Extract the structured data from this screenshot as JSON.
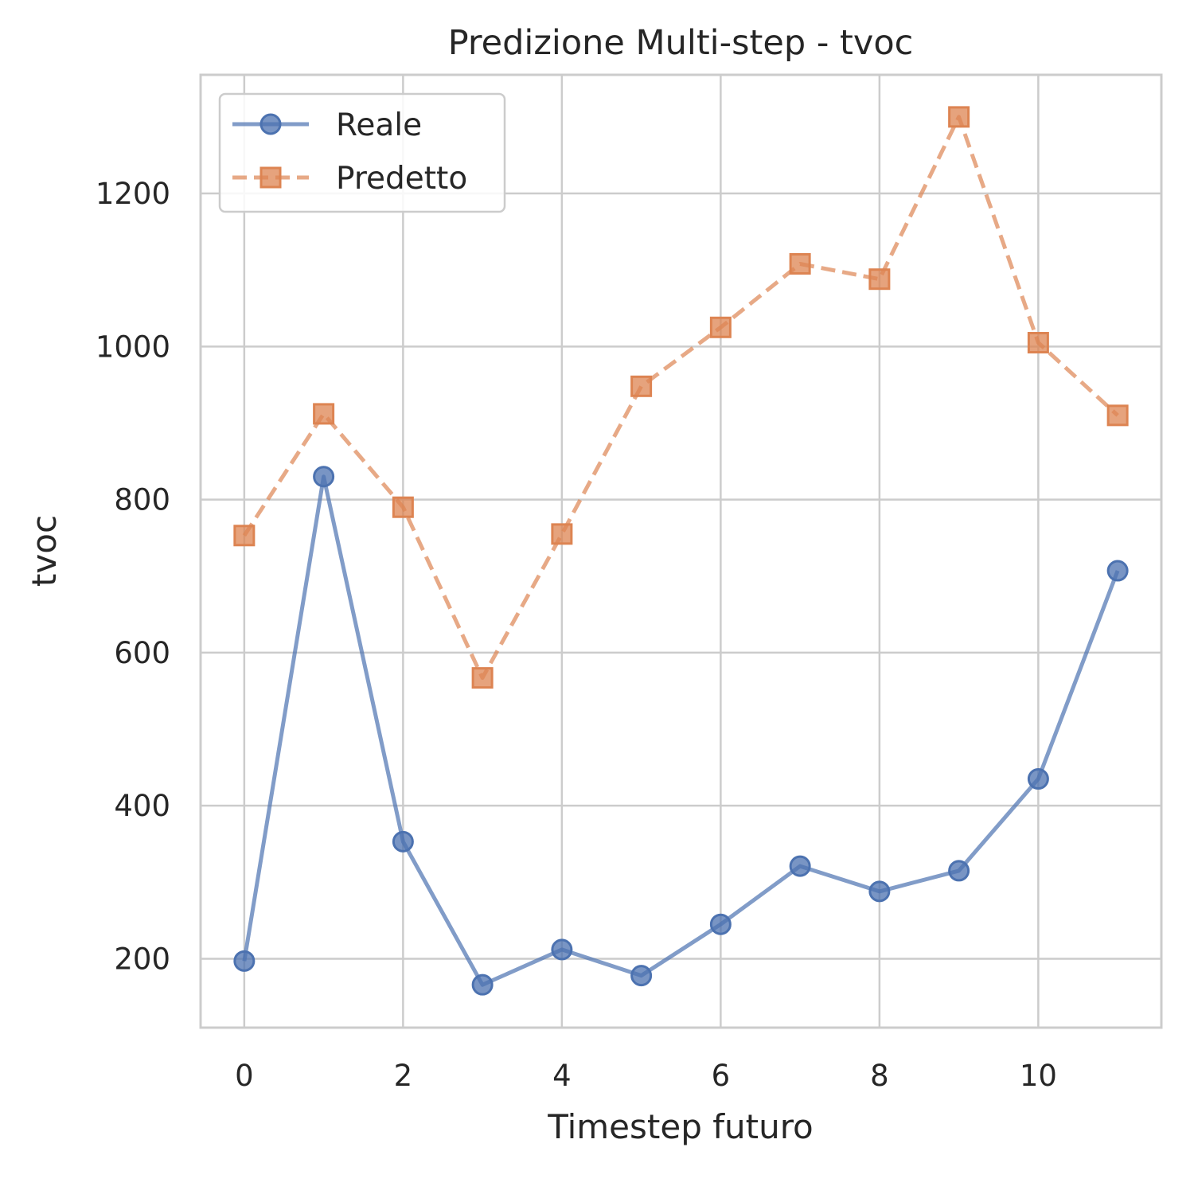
{
  "chart_data": {
    "type": "line",
    "title": "Predizione Multi-step - tvoc",
    "xlabel": "Timestep futuro",
    "ylabel": "tvoc",
    "x": [
      0,
      1,
      2,
      3,
      4,
      5,
      6,
      7,
      8,
      9,
      10,
      11
    ],
    "xlim": [
      -0.55,
      11.55
    ],
    "ylim": [
      110,
      1355
    ],
    "xticks": [
      0,
      2,
      4,
      6,
      8,
      10
    ],
    "yticks": [
      200,
      400,
      600,
      800,
      1000,
      1200
    ],
    "grid": true,
    "legend_position": "top-left",
    "series": [
      {
        "name": "Reale",
        "values": [
          197,
          830,
          353,
          166,
          212,
          178,
          245,
          321,
          288,
          315,
          435,
          707
        ],
        "color": "#4c72b0",
        "line_style": "solid",
        "marker": "circle"
      },
      {
        "name": "Predetto",
        "values": [
          753,
          912,
          790,
          567,
          755,
          948,
          1025,
          1108,
          1088,
          1300,
          1005,
          910
        ],
        "color": "#dd8452",
        "line_style": "dashed",
        "marker": "square"
      }
    ]
  }
}
